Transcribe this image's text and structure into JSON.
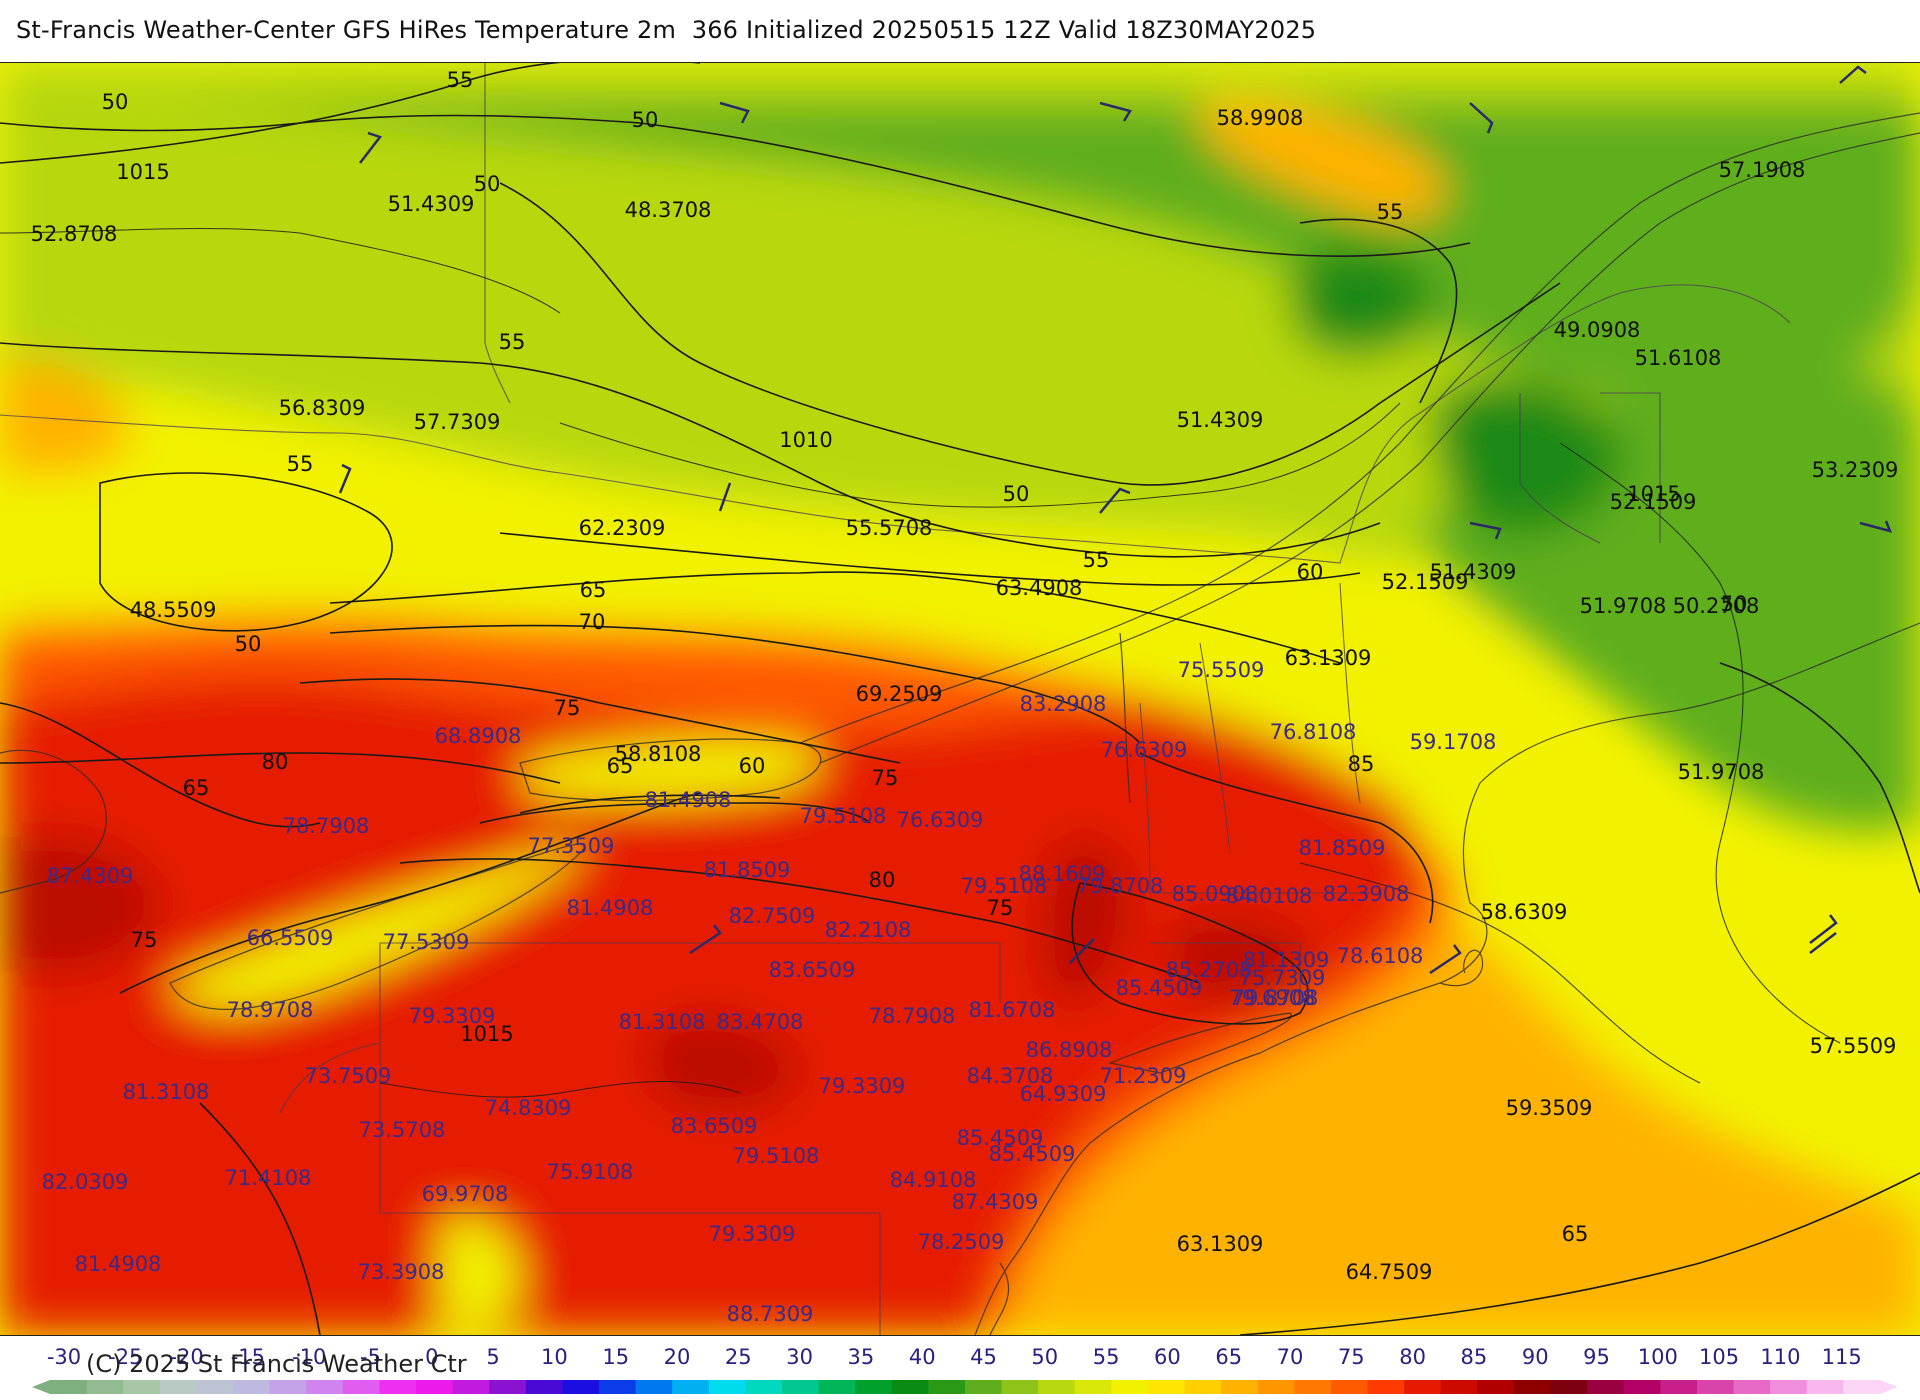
{
  "title": "St-Francis Weather-Center GFS HiRes Temperature 2m  366 Initialized 20250515 12Z Valid 18Z30MAY2025",
  "copyright": "(C) 2025 St Francis Weather Ctr",
  "colors": {
    "dark_green": "#1f8a16",
    "green": "#5fae1e",
    "yellow_green": "#b8d810",
    "yellow": "#f2f200",
    "orange": "#ffb300",
    "red_orange": "#ff5a00",
    "red": "#e61a00",
    "dark_red": "#bb0a00",
    "contour": "#1a1a1a",
    "label_purple": "#3b2a8a"
  },
  "isotherm_labels": [
    {
      "text": "55"
    },
    {
      "text": "50"
    },
    {
      "text": "50"
    },
    {
      "text": "50"
    },
    {
      "text": "55"
    },
    {
      "text": "55"
    },
    {
      "text": "50"
    },
    {
      "text": "55"
    },
    {
      "text": "50"
    },
    {
      "text": "55"
    },
    {
      "text": "60"
    },
    {
      "text": "65"
    },
    {
      "text": "70"
    },
    {
      "text": "75"
    },
    {
      "text": "80"
    },
    {
      "text": "65"
    },
    {
      "text": "65"
    },
    {
      "text": "60"
    },
    {
      "text": "75"
    },
    {
      "text": "80"
    },
    {
      "text": "75"
    },
    {
      "text": "85"
    },
    {
      "text": "75"
    },
    {
      "text": "65"
    },
    {
      "text": "50"
    }
  ],
  "isobar_labels": [
    {
      "text": "1015"
    },
    {
      "text": "1010"
    },
    {
      "text": "1015"
    },
    {
      "text": "1015"
    }
  ],
  "black_values": [
    {
      "text": "58.9908"
    },
    {
      "text": "57.1908"
    },
    {
      "text": "52.8708"
    },
    {
      "text": "51.4309"
    },
    {
      "text": "48.3708"
    },
    {
      "text": "49.0908"
    },
    {
      "text": "51.6108"
    },
    {
      "text": "56.8309"
    },
    {
      "text": "57.7309"
    },
    {
      "text": "51.4309"
    },
    {
      "text": "53.2309"
    },
    {
      "text": "52.1509"
    },
    {
      "text": "62.2309"
    },
    {
      "text": "55.5708"
    },
    {
      "text": "48.5509"
    },
    {
      "text": "52.1509"
    },
    {
      "text": "51.4309"
    },
    {
      "text": "51.9708"
    },
    {
      "text": "50.2708"
    },
    {
      "text": "63.4908"
    },
    {
      "text": "63.1309"
    },
    {
      "text": "51.9708"
    },
    {
      "text": "58.6309"
    },
    {
      "text": "57.5509"
    },
    {
      "text": "59.3509"
    },
    {
      "text": "63.1309"
    },
    {
      "text": "64.7509"
    },
    {
      "text": "69.2509"
    },
    {
      "text": "58.8108"
    }
  ],
  "purple_values": [
    {
      "text": "75.5509"
    },
    {
      "text": "68.8908"
    },
    {
      "text": "83.2908"
    },
    {
      "text": "76.6309"
    },
    {
      "text": "76.8108"
    },
    {
      "text": "59.1708"
    },
    {
      "text": "78.7908"
    },
    {
      "text": "81.4908"
    },
    {
      "text": "79.5108"
    },
    {
      "text": "76.6309"
    },
    {
      "text": "77.3509"
    },
    {
      "text": "81.8509"
    },
    {
      "text": "87.4309"
    },
    {
      "text": "81.8509"
    },
    {
      "text": "88.1609"
    },
    {
      "text": "79.5108"
    },
    {
      "text": "79.8708"
    },
    {
      "text": "85.0908"
    },
    {
      "text": "84.0108"
    },
    {
      "text": "82.3908"
    },
    {
      "text": "66.5509"
    },
    {
      "text": "77.5309"
    },
    {
      "text": "81.4908"
    },
    {
      "text": "82.7509"
    },
    {
      "text": "82.2108"
    },
    {
      "text": "85.2708"
    },
    {
      "text": "81.1309"
    },
    {
      "text": "78.6108"
    },
    {
      "text": "85.4509"
    },
    {
      "text": "79.8708"
    },
    {
      "text": "83.6509"
    },
    {
      "text": "75.7309"
    },
    {
      "text": "79.6908"
    },
    {
      "text": "78.9708"
    },
    {
      "text": "79.3309"
    },
    {
      "text": "81.3108"
    },
    {
      "text": "83.4708"
    },
    {
      "text": "78.7908"
    },
    {
      "text": "81.6708"
    },
    {
      "text": "86.8908"
    },
    {
      "text": "73.7509"
    },
    {
      "text": "81.3108"
    },
    {
      "text": "79.3309"
    },
    {
      "text": "84.3708"
    },
    {
      "text": "64.9309"
    },
    {
      "text": "71.2309"
    },
    {
      "text": "74.8309"
    },
    {
      "text": "83.6509"
    },
    {
      "text": "73.5708"
    },
    {
      "text": "85.4509"
    },
    {
      "text": "82.0309"
    },
    {
      "text": "71.4108"
    },
    {
      "text": "75.9108"
    },
    {
      "text": "79.5108"
    },
    {
      "text": "84.9108"
    },
    {
      "text": "69.9708"
    },
    {
      "text": "87.4309"
    },
    {
      "text": "81.4908"
    },
    {
      "text": "73.3908"
    },
    {
      "text": "79.3309"
    },
    {
      "text": "78.2509"
    },
    {
      "text": "85.4509"
    },
    {
      "text": "88.7309"
    }
  ],
  "colorbar": {
    "ticks": [
      "-30",
      "-25",
      "-20",
      "-15",
      "-10",
      "-5",
      "0",
      "5",
      "10",
      "15",
      "20",
      "25",
      "30",
      "35",
      "40",
      "45",
      "50",
      "55",
      "60",
      "65",
      "70",
      "75",
      "80",
      "85",
      "90",
      "95",
      "100",
      "105",
      "110",
      "115"
    ],
    "colors": [
      "#7fae7f",
      "#92bb92",
      "#a7c7a7",
      "#b9c9c4",
      "#bcc3d3",
      "#bdb9e0",
      "#c4a2e8",
      "#d084ee",
      "#df5ef0",
      "#ee2ff2",
      "#ec1aeb",
      "#c11be0",
      "#8a12d0",
      "#4a0ad6",
      "#1a0ee0",
      "#0a3ce8",
      "#0078f0",
      "#00b0f0",
      "#00dced",
      "#00d8c0",
      "#00c88e",
      "#00b658",
      "#00a02c",
      "#0a8c12",
      "#2a9a16",
      "#5fae1e",
      "#8ec41a",
      "#b8d810",
      "#d9e808",
      "#f2f200",
      "#ffe600",
      "#ffcf00",
      "#ffb300",
      "#ff9600",
      "#ff7800",
      "#ff5a00",
      "#ff3a00",
      "#e61a00",
      "#cc0a00",
      "#b00000",
      "#8e0000",
      "#7c0010",
      "#9a0040",
      "#b20066",
      "#c8208a",
      "#d844aa",
      "#e66ac6",
      "#f08ede",
      "#f8b8ee",
      "#fbd6f5"
    ]
  }
}
